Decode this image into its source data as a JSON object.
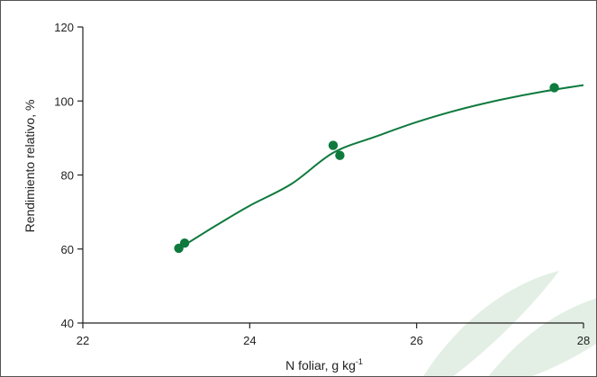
{
  "chart_data": {
    "type": "scatter",
    "title": "",
    "xlabel": "N foliar, g kg",
    "xlabel_superscript": "-1",
    "ylabel": "Rendimiento relativo, %",
    "xlim": [
      22,
      28
    ],
    "ylim": [
      40,
      120
    ],
    "xticks": [
      "22",
      "24",
      "26",
      "28"
    ],
    "yticks": [
      "40",
      "60",
      "80",
      "100",
      "120"
    ],
    "grid": false,
    "series": [
      {
        "points": [
          {
            "x": 23.15,
            "y": 60.2
          },
          {
            "x": 23.22,
            "y": 61.6
          },
          {
            "x": 25.0,
            "y": 88.0
          },
          {
            "x": 25.08,
            "y": 85.3
          },
          {
            "x": 27.65,
            "y": 103.6
          }
        ]
      }
    ],
    "fit_curve": {
      "points": [
        {
          "x": 23.2,
          "y": 60.8
        },
        {
          "x": 23.6,
          "y": 66.4
        },
        {
          "x": 24.0,
          "y": 71.7
        },
        {
          "x": 24.5,
          "y": 77.6
        },
        {
          "x": 25.0,
          "y": 86.0
        },
        {
          "x": 25.5,
          "y": 90.3
        },
        {
          "x": 26.0,
          "y": 94.3
        },
        {
          "x": 26.5,
          "y": 97.6
        },
        {
          "x": 27.0,
          "y": 100.3
        },
        {
          "x": 27.5,
          "y": 102.5
        },
        {
          "x": 28.0,
          "y": 104.3
        }
      ]
    },
    "colors": {
      "series": "#0f7a3e",
      "axis": "#222222",
      "watermark": "#e3efe4"
    }
  }
}
